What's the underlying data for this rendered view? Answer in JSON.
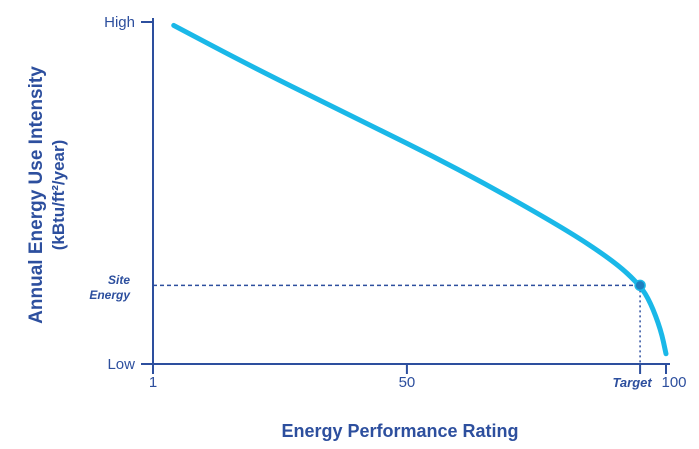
{
  "chart_data": {
    "type": "line",
    "xlabel": "Energy Performance Rating",
    "ylabel_line1": "Annual Energy Use Intensity",
    "ylabel_line2": "(kBtu/ft²/year)",
    "x_ticks": [
      "1",
      "50",
      "Target",
      "100"
    ],
    "y_ticks": [
      "High",
      "Low"
    ],
    "xlim": [
      1,
      100
    ],
    "ylim": [
      0,
      100
    ],
    "x_tick_values": [
      1,
      50,
      95,
      100
    ],
    "y_tick_values": [
      100,
      0
    ],
    "series": [
      {
        "points": [
          [
            5,
            99
          ],
          [
            20,
            87
          ],
          [
            40,
            72
          ],
          [
            60,
            57
          ],
          [
            80,
            40
          ],
          [
            90,
            30
          ],
          [
            95,
            23
          ],
          [
            97,
            18
          ],
          [
            99,
            10
          ],
          [
            100,
            3
          ]
        ]
      }
    ],
    "annotations": {
      "target_label": "Target",
      "site_energy_line1": "Site",
      "site_energy_line2": "Energy",
      "target_point": {
        "x": 95,
        "y": 23
      }
    },
    "colors": {
      "curve": "#1ab8e8",
      "axis": "#2d4f9e",
      "reference": "#2d4f9e",
      "text": "#2d4f9e"
    }
  }
}
